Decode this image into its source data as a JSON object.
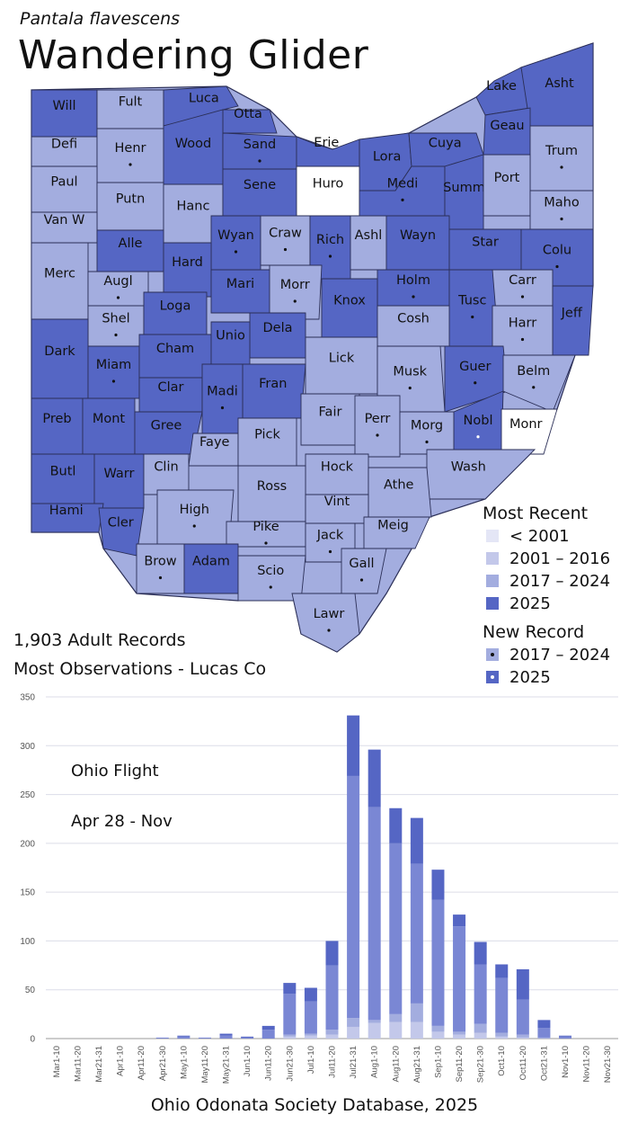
{
  "species": "Pantala flavescens",
  "title": "Wandering Glider",
  "stats": {
    "records": "1,903 Adult Records",
    "most": "Most Observations - Lucas Co"
  },
  "colors": {
    "lt2001": "#e4e6f6",
    "c2001_2016": "#c3c8ea",
    "c2017_2024": "#a3addf",
    "c2025": "#5566c4",
    "none": "#ffffff",
    "border": "#2b2f57"
  },
  "legend": {
    "recent_title": "Most Recent",
    "recent": [
      {
        "label": "< 2001",
        "color": "#e4e6f6"
      },
      {
        "label": "2001 – 2016",
        "color": "#c3c8ea"
      },
      {
        "label": "2017 – 2024",
        "color": "#a3addf"
      },
      {
        "label": "2025",
        "color": "#5566c4"
      }
    ],
    "new_title": "New Record",
    "new": [
      {
        "label": "2017 – 2024",
        "color": "#a3addf",
        "dot": "#111111"
      },
      {
        "label": "2025",
        "color": "#5566c4",
        "dot": "#ffffff"
      }
    ]
  },
  "counties": [
    {
      "name": "Will",
      "cat": "2025"
    },
    {
      "name": "Fult",
      "cat": "2017"
    },
    {
      "name": "Luca",
      "cat": "2025"
    },
    {
      "name": "Otta",
      "cat": "2025"
    },
    {
      "name": "Defi",
      "cat": "2017"
    },
    {
      "name": "Henr",
      "cat": "2017",
      "newrec": "2017"
    },
    {
      "name": "Wood",
      "cat": "2025"
    },
    {
      "name": "Sand",
      "cat": "2025",
      "newrec": "2017"
    },
    {
      "name": "Erie",
      "cat": "2025"
    },
    {
      "name": "Lora",
      "cat": "2025"
    },
    {
      "name": "Cuya",
      "cat": "2025"
    },
    {
      "name": "Lake",
      "cat": "2025"
    },
    {
      "name": "Asht",
      "cat": "2025"
    },
    {
      "name": "Geau",
      "cat": "2025"
    },
    {
      "name": "Trum",
      "cat": "2017",
      "newrec": "2017"
    },
    {
      "name": "Paul",
      "cat": "2017"
    },
    {
      "name": "Putn",
      "cat": "2017"
    },
    {
      "name": "Hanc",
      "cat": "2017"
    },
    {
      "name": "Sene",
      "cat": "2025"
    },
    {
      "name": "Huro",
      "cat": "none"
    },
    {
      "name": "Medi",
      "cat": "2025",
      "newrec": "2017"
    },
    {
      "name": "Summ",
      "cat": "2025"
    },
    {
      "name": "Port",
      "cat": "2017"
    },
    {
      "name": "Maho",
      "cat": "2017",
      "newrec": "2017"
    },
    {
      "name": "Van W",
      "cat": "2017"
    },
    {
      "name": "Alle",
      "cat": "2025"
    },
    {
      "name": "Wyan",
      "cat": "2025",
      "newrec": "2017"
    },
    {
      "name": "Craw",
      "cat": "2017",
      "newrec": "2017"
    },
    {
      "name": "Rich",
      "cat": "2025",
      "newrec": "2017"
    },
    {
      "name": "Ashl",
      "cat": "2017"
    },
    {
      "name": "Wayn",
      "cat": "2025"
    },
    {
      "name": "Star",
      "cat": "2025"
    },
    {
      "name": "Colu",
      "cat": "2025",
      "newrec": "2017"
    },
    {
      "name": "Merc",
      "cat": "2017"
    },
    {
      "name": "Augl",
      "cat": "2017",
      "newrec": "2017"
    },
    {
      "name": "Hard",
      "cat": "2025"
    },
    {
      "name": "Mari",
      "cat": "2025"
    },
    {
      "name": "Morr",
      "cat": "2017",
      "newrec": "2017"
    },
    {
      "name": "Holm",
      "cat": "2025",
      "newrec": "2017"
    },
    {
      "name": "Carr",
      "cat": "2017",
      "newrec": "2017"
    },
    {
      "name": "Shel",
      "cat": "2017",
      "newrec": "2017"
    },
    {
      "name": "Loga",
      "cat": "2025"
    },
    {
      "name": "Knox",
      "cat": "2025"
    },
    {
      "name": "Tusc",
      "cat": "2025",
      "newrec": "2017"
    },
    {
      "name": "Jeff",
      "cat": "2025"
    },
    {
      "name": "Dark",
      "cat": "2025"
    },
    {
      "name": "Dela",
      "cat": "2025"
    },
    {
      "name": "Cosh",
      "cat": "2017"
    },
    {
      "name": "Harr",
      "cat": "2017",
      "newrec": "2017"
    },
    {
      "name": "Miam",
      "cat": "2025",
      "newrec": "2017"
    },
    {
      "name": "Cham",
      "cat": "2025"
    },
    {
      "name": "Unio",
      "cat": "2025"
    },
    {
      "name": "Lick",
      "cat": "2017"
    },
    {
      "name": "Musk",
      "cat": "2017",
      "newrec": "2017"
    },
    {
      "name": "Guer",
      "cat": "2025",
      "newrec": "2017"
    },
    {
      "name": "Belm",
      "cat": "2017",
      "newrec": "2017"
    },
    {
      "name": "Clar",
      "cat": "2025"
    },
    {
      "name": "Fran",
      "cat": "2025"
    },
    {
      "name": "Madi",
      "cat": "2025",
      "newrec": "2017"
    },
    {
      "name": "Preb",
      "cat": "2025"
    },
    {
      "name": "Mont",
      "cat": "2025"
    },
    {
      "name": "Gree",
      "cat": "2025"
    },
    {
      "name": "Fair",
      "cat": "2017"
    },
    {
      "name": "Perr",
      "cat": "2017",
      "newrec": "2017"
    },
    {
      "name": "Nobl",
      "cat": "2025",
      "newrec": "2025"
    },
    {
      "name": "Monr",
      "cat": "none"
    },
    {
      "name": "Faye",
      "cat": "2017"
    },
    {
      "name": "Pick",
      "cat": "2017"
    },
    {
      "name": "Morg",
      "cat": "2017",
      "newrec": "2017"
    },
    {
      "name": "Butl",
      "cat": "2025"
    },
    {
      "name": "Warr",
      "cat": "2025"
    },
    {
      "name": "Clin",
      "cat": "2017"
    },
    {
      "name": "Hock",
      "cat": "2017"
    },
    {
      "name": "Wash",
      "cat": "2017"
    },
    {
      "name": "Ross",
      "cat": "2017"
    },
    {
      "name": "Athe",
      "cat": "2017"
    },
    {
      "name": "Hami",
      "cat": "2025"
    },
    {
      "name": "High",
      "cat": "2017",
      "newrec": "2017"
    },
    {
      "name": "Vint",
      "cat": "2017"
    },
    {
      "name": "Cler",
      "cat": "2025"
    },
    {
      "name": "Meig",
      "cat": "2017"
    },
    {
      "name": "Pike",
      "cat": "2017",
      "newrec": "2017"
    },
    {
      "name": "Jack",
      "cat": "2017",
      "newrec": "2017"
    },
    {
      "name": "Brow",
      "cat": "2017",
      "newrec": "2017"
    },
    {
      "name": "Adam",
      "cat": "2025"
    },
    {
      "name": "Gall",
      "cat": "2017",
      "newrec": "2017"
    },
    {
      "name": "Scio",
      "cat": "2017",
      "newrec": "2017"
    },
    {
      "name": "Lawr",
      "cat": "2017",
      "newrec": "2017"
    }
  ],
  "annotations": {
    "flight_title": "Ohio Flight",
    "flight_range": "Apr 28 - Nov"
  },
  "footer": "Ohio Odonata Society Database, 2025",
  "chart_data": {
    "type": "bar",
    "stacked": true,
    "categories": [
      "Mar1-10",
      "Mar11-20",
      "Mar21-31",
      "Apr1-10",
      "Apr11-20",
      "Apr21-30",
      "May1-10",
      "May11-20",
      "May21-31",
      "Jun1-10",
      "Jun11-20",
      "Jun21-30",
      "Jul1-10",
      "Jul11-20",
      "Jul21-31",
      "Aug1-10",
      "Aug11-20",
      "Aug21-31",
      "Sep1-10",
      "Sep11-20",
      "Sep21-30",
      "Oct1-10",
      "Oct11-20",
      "Oct21-31",
      "Nov1-10",
      "Nov11-20",
      "Nov21-30"
    ],
    "series": [
      {
        "color": "#c3c8ea",
        "values": [
          0,
          0,
          0,
          0,
          0,
          0,
          0,
          0,
          0,
          0,
          0,
          2,
          3,
          4,
          12,
          16,
          17,
          17,
          7,
          4,
          6,
          2,
          1,
          0,
          0,
          0,
          0
        ]
      },
      {
        "color": "#a3addf",
        "values": [
          0,
          0,
          0,
          0,
          0,
          0,
          0,
          0,
          0,
          0,
          0,
          2,
          2,
          5,
          9,
          3,
          8,
          19,
          6,
          3,
          9,
          4,
          3,
          1,
          0,
          0,
          0
        ]
      },
      {
        "color": "#7a87d4",
        "values": [
          0,
          0,
          0,
          0,
          0,
          1,
          2,
          1,
          3,
          1,
          9,
          42,
          33,
          66,
          248,
          218,
          175,
          143,
          129,
          108,
          61,
          56,
          36,
          10,
          2,
          0,
          0
        ]
      },
      {
        "color": "#5566c4",
        "values": [
          0,
          0,
          0,
          0,
          0,
          0,
          1,
          0,
          2,
          1,
          4,
          11,
          14,
          25,
          62,
          59,
          36,
          47,
          31,
          12,
          23,
          14,
          31,
          8,
          1,
          0,
          0
        ]
      }
    ],
    "ylim": [
      0,
      350
    ],
    "yticks": [
      0,
      50,
      100,
      150,
      200,
      250,
      300,
      350
    ],
    "grid": true
  }
}
